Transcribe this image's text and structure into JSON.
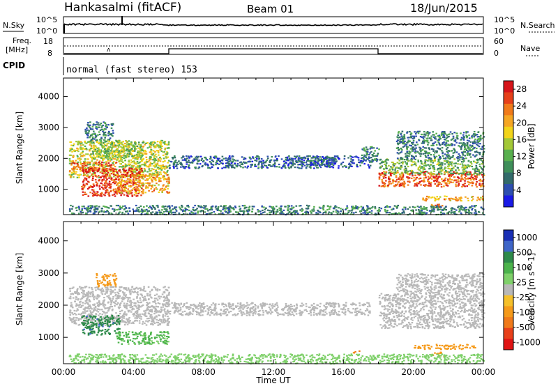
{
  "header": {
    "station": "Hankasalmi (fitACF)",
    "beam": "Beam 01",
    "date": "18/Jun/2015"
  },
  "status": {
    "nsky_label": "N.Sky",
    "nsky_ticks": [
      "10^5",
      "10^0"
    ],
    "nsearch_label": "N.Search",
    "nsearch_ticks": [
      "10^5",
      "10^0"
    ],
    "freq_label": "Freq.",
    "freq_unit": "[MHz]",
    "freq_ticks": [
      "18",
      "8"
    ],
    "nave_label": "Nave",
    "nave_ticks": [
      "60",
      "0"
    ],
    "cpid_label": "CPID",
    "cpid_text": "normal (fast stereo) 153"
  },
  "colors": {
    "power": [
      "#1a1ae6",
      "#2e4fb0",
      "#336b6b",
      "#3f8f5a",
      "#59b04f",
      "#a3c837",
      "#f2d41a",
      "#f5a623",
      "#f07a1a",
      "#e6401a",
      "#d6141a"
    ],
    "velocity": [
      "#1a2fb5",
      "#3f66c8",
      "#2e8a4a",
      "#4cb34c",
      "#7fd06a",
      "#b8b8b8",
      "#f5c02a",
      "#f59a1a",
      "#f07a1a",
      "#e8401a",
      "#e01414"
    ]
  },
  "chart_data": [
    {
      "type": "heatmap",
      "title": "Power",
      "xlabel": "Time UT",
      "ylabel": "Slant Range [km]",
      "xlim": [
        "00:00",
        "24:00"
      ],
      "ylim": [
        180,
        4600
      ],
      "x_ticks": [
        "00:00",
        "04:00",
        "08:00",
        "12:00",
        "16:00",
        "20:00",
        "00:00"
      ],
      "y_ticks": [
        1000,
        2000,
        3000,
        4000
      ],
      "colorbar": {
        "label": "Power [dB]",
        "ticks": [
          "4",
          "8",
          "12",
          "16",
          "20",
          "24",
          "28"
        ],
        "range": [
          0,
          30
        ]
      },
      "series": [
        {
          "t0": 0.3,
          "t1": 6.0,
          "r0": 1400,
          "r1": 2600,
          "level": 16
        },
        {
          "t0": 0.3,
          "t1": 3.0,
          "r0": 1600,
          "r1": 1900,
          "level": 24
        },
        {
          "t0": 1.0,
          "t1": 4.5,
          "r0": 800,
          "r1": 1700,
          "level": 27
        },
        {
          "t0": 3.0,
          "t1": 6.0,
          "r0": 900,
          "r1": 1500,
          "level": 20
        },
        {
          "t0": 1.5,
          "t1": 4.5,
          "r0": 2000,
          "r1": 2600,
          "level": 14
        },
        {
          "t0": 1.2,
          "t1": 2.8,
          "r0": 2600,
          "r1": 3200,
          "level": 8
        },
        {
          "t0": 6.0,
          "t1": 17.5,
          "r0": 1700,
          "r1": 2100,
          "level": 6
        },
        {
          "t0": 13.0,
          "t1": 15.5,
          "r0": 1800,
          "r1": 2100,
          "level": 6
        },
        {
          "t0": 17.0,
          "t1": 18.0,
          "r0": 1900,
          "r1": 2400,
          "level": 8
        },
        {
          "t0": 18.0,
          "t1": 24.0,
          "r0": 1100,
          "r1": 1600,
          "level": 25
        },
        {
          "t0": 18.0,
          "t1": 24.0,
          "r0": 1500,
          "r1": 2000,
          "level": 12
        },
        {
          "t0": 19.0,
          "t1": 24.0,
          "r0": 2000,
          "r1": 2900,
          "level": 8
        },
        {
          "t0": 20.5,
          "t1": 24.0,
          "r0": 650,
          "r1": 800,
          "level": 20
        },
        {
          "t0": 21.0,
          "t1": 21.8,
          "r0": 420,
          "r1": 560,
          "level": 22
        },
        {
          "t0": 0.3,
          "t1": 24.0,
          "r0": 200,
          "r1": 500,
          "level": 8
        }
      ]
    },
    {
      "type": "heatmap",
      "title": "Velocity",
      "xlabel": "Time UT",
      "ylabel": "Slant Range [km]",
      "xlim": [
        "00:00",
        "24:00"
      ],
      "ylim": [
        180,
        4600
      ],
      "x_ticks": [
        "00:00",
        "04:00",
        "08:00",
        "12:00",
        "16:00",
        "20:00",
        "00:00"
      ],
      "y_ticks": [
        1000,
        2000,
        3000,
        4000
      ],
      "colorbar": {
        "label": "Velocity [m s^-1]",
        "ticks": [
          "1000",
          "500",
          "100",
          "25",
          "-25",
          "-100",
          "-500",
          "-1000"
        ],
        "range": [
          -1000,
          1000
        ]
      },
      "series": [
        {
          "t0": 0.3,
          "t1": 6.0,
          "r0": 1400,
          "r1": 2600,
          "level": 0
        },
        {
          "t0": 1.0,
          "t1": 3.2,
          "r0": 1100,
          "r1": 1700,
          "level": 400
        },
        {
          "t0": 3.0,
          "t1": 6.0,
          "r0": 800,
          "r1": 1200,
          "level": 120
        },
        {
          "t0": 1.8,
          "t1": 3.0,
          "r0": 2600,
          "r1": 3000,
          "level": -150
        },
        {
          "t0": 6.0,
          "t1": 17.5,
          "r0": 1700,
          "r1": 2100,
          "level": 0
        },
        {
          "t0": 18.0,
          "t1": 24.0,
          "r0": 1300,
          "r1": 2400,
          "level": 0
        },
        {
          "t0": 19.0,
          "t1": 24.0,
          "r0": 2400,
          "r1": 3000,
          "level": 0
        },
        {
          "t0": 20.0,
          "t1": 23.5,
          "r0": 650,
          "r1": 800,
          "level": -150
        },
        {
          "t0": 21.0,
          "t1": 21.8,
          "r0": 420,
          "r1": 560,
          "level": -200
        },
        {
          "t0": 16.5,
          "t1": 16.9,
          "r0": 520,
          "r1": 600,
          "level": -300
        },
        {
          "t0": 0.3,
          "t1": 24.0,
          "r0": 200,
          "r1": 500,
          "level": 60
        }
      ]
    }
  ]
}
